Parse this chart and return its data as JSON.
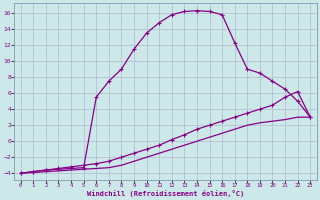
{
  "xlabel": "Windchill (Refroidissement éolien,°C)",
  "bg_color": "#cce8e8",
  "grid_color": "#b0b8d0",
  "line_color": "#880088",
  "xlim": [
    -0.5,
    23.5
  ],
  "ylim": [
    -4.8,
    17.2
  ],
  "xticks": [
    0,
    1,
    2,
    3,
    4,
    5,
    6,
    7,
    8,
    9,
    10,
    11,
    12,
    13,
    14,
    15,
    16,
    17,
    18,
    19,
    20,
    21,
    22,
    23
  ],
  "yticks": [
    -4,
    -2,
    0,
    2,
    4,
    6,
    8,
    10,
    12,
    14,
    16
  ],
  "curve1_x": [
    0,
    1,
    2,
    3,
    4,
    5,
    6,
    7,
    8,
    9,
    10,
    11,
    12,
    13,
    14,
    15,
    16,
    17,
    18,
    19,
    20,
    21,
    22,
    23
  ],
  "curve1_y": [
    -4.0,
    -3.8,
    -3.6,
    -3.5,
    -3.4,
    -3.3,
    5.5,
    7.5,
    9.0,
    11.5,
    13.5,
    14.8,
    15.8,
    16.2,
    16.3,
    16.2,
    15.8,
    12.3,
    9.0,
    8.5,
    7.5,
    6.5,
    5.0,
    3.0
  ],
  "curve2_x": [
    0,
    1,
    2,
    3,
    4,
    5,
    6,
    7,
    8,
    9,
    10,
    11,
    12,
    13,
    14,
    15,
    16,
    17,
    18,
    19,
    20,
    21,
    22,
    23
  ],
  "curve2_y": [
    -4.0,
    -3.8,
    -3.6,
    -3.4,
    -3.2,
    -3.0,
    -2.8,
    -2.5,
    -2.0,
    -1.5,
    -1.0,
    -0.5,
    0.2,
    0.8,
    1.5,
    2.0,
    2.5,
    3.0,
    3.5,
    4.0,
    4.5,
    5.5,
    6.2,
    3.0
  ],
  "curve3_x": [
    0,
    1,
    2,
    3,
    4,
    5,
    6,
    7,
    8,
    9,
    10,
    11,
    12,
    13,
    14,
    15,
    16,
    17,
    18,
    19,
    20,
    21,
    22,
    23
  ],
  "curve3_y": [
    -4.0,
    -3.9,
    -3.8,
    -3.7,
    -3.6,
    -3.5,
    -3.4,
    -3.3,
    -3.0,
    -2.5,
    -2.0,
    -1.5,
    -1.0,
    -0.5,
    0.0,
    0.5,
    1.0,
    1.5,
    2.0,
    2.3,
    2.5,
    2.7,
    3.0,
    3.0
  ]
}
